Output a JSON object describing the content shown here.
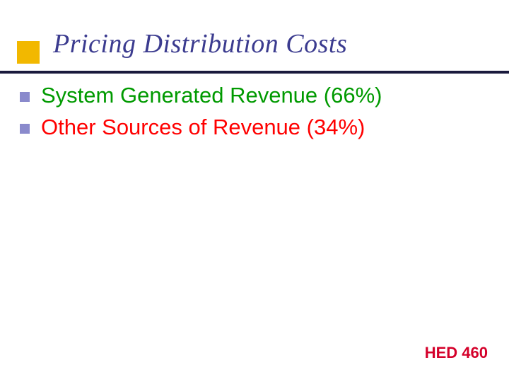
{
  "slide": {
    "title": "Pricing Distribution Costs",
    "title_color": "#3b3b8f",
    "title_fontsize": 38,
    "title_square_color": "#f2b800",
    "divider_color": "#1a1a3d",
    "bullets": [
      {
        "text": "System Generated Revenue (66%)",
        "text_color": "#009a00"
      },
      {
        "text": "Other Sources of Revenue (34%)",
        "text_color": "#ff0000"
      }
    ],
    "bullet_marker_color": "#8a8acc",
    "bullet_fontsize": 31,
    "footer": "HED 460",
    "footer_color": "#d4002a",
    "background_color": "#ffffff"
  }
}
